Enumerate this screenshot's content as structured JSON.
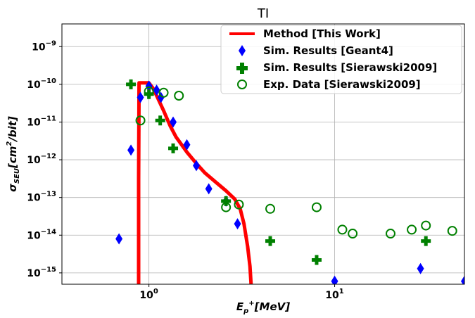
{
  "chart_data": {
    "type": "scatter",
    "title": "TI",
    "xlabel": "E_{p+} [MeV]",
    "xlabel_parts": {
      "main": "E",
      "sub": "p",
      "sup": "+",
      "rest": "[MeV]"
    },
    "ylabel": "σ_SEU [cm²/bit]",
    "ylabel_parts": {
      "main": "σ",
      "sub": "SEU",
      "rest1": "[cm",
      "sup": "2",
      "rest2": "/bit]"
    },
    "x_scale": "log",
    "y_scale": "log",
    "xlim": [
      0.34,
      50
    ],
    "ylim": [
      5e-16,
      4e-09
    ],
    "grid": true,
    "legend_position": "top-right",
    "x_ticks": [
      {
        "value": 1,
        "base": "10",
        "exp": "0"
      },
      {
        "value": 10,
        "base": "10",
        "exp": "1"
      }
    ],
    "y_ticks": [
      {
        "value": 1e-09,
        "base": "10",
        "exp": "−9"
      },
      {
        "value": 1e-10,
        "base": "10",
        "exp": "−10"
      },
      {
        "value": 1e-11,
        "base": "10",
        "exp": "−11"
      },
      {
        "value": 1e-12,
        "base": "10",
        "exp": "−12"
      },
      {
        "value": 1e-13,
        "base": "10",
        "exp": "−13"
      },
      {
        "value": 1e-14,
        "base": "10",
        "exp": "−14"
      },
      {
        "value": 1e-15,
        "base": "10",
        "exp": "−15"
      }
    ],
    "series": [
      {
        "name": "Method [This Work]",
        "kind": "line",
        "color": "#ff0000",
        "points": [
          [
            0.88,
            5e-16
          ],
          [
            0.88,
            3e-13
          ],
          [
            0.885,
            1.1e-10
          ],
          [
            1.0,
            1.1e-10
          ],
          [
            1.05,
            8e-11
          ],
          [
            1.1,
            5e-11
          ],
          [
            1.2,
            2e-11
          ],
          [
            1.3,
            8e-12
          ],
          [
            1.4,
            4e-12
          ],
          [
            1.6,
            1.6e-12
          ],
          [
            1.8,
            8e-13
          ],
          [
            2.0,
            4.5e-13
          ],
          [
            2.3,
            2.5e-13
          ],
          [
            2.6,
            1.5e-13
          ],
          [
            2.9,
            9e-14
          ],
          [
            3.1,
            5e-14
          ],
          [
            3.25,
            2e-14
          ],
          [
            3.4,
            5e-15
          ],
          [
            3.5,
            1.5e-15
          ],
          [
            3.55,
            5e-16
          ]
        ]
      },
      {
        "name": "Sim. Results [Geant4]",
        "kind": "diamond",
        "color": "#0000ff",
        "points": [
          [
            0.69,
            8e-15
          ],
          [
            0.8,
            1.8e-12
          ],
          [
            0.9,
            4.5e-11
          ],
          [
            1.0,
            9e-11
          ],
          [
            1.1,
            7e-11
          ],
          [
            1.16,
            4.5e-11
          ],
          [
            1.35,
            1e-11
          ],
          [
            1.6,
            2.5e-12
          ],
          [
            1.8,
            7e-13
          ],
          [
            2.1,
            1.7e-13
          ],
          [
            2.6,
            8e-14
          ],
          [
            3.0,
            2e-14
          ],
          [
            10,
            6e-16
          ],
          [
            29,
            1.3e-15
          ],
          [
            50,
            6e-16
          ]
        ]
      },
      {
        "name": "Sim. Results [Sierawski2009]",
        "kind": "plus",
        "color": "#008000",
        "points": [
          [
            0.8,
            1e-10
          ],
          [
            1.0,
            5.5e-11
          ],
          [
            1.15,
            1.1e-11
          ],
          [
            1.35,
            2e-12
          ],
          [
            2.6,
            8e-14
          ],
          [
            4.5,
            7e-15
          ],
          [
            8.0,
            2.2e-15
          ],
          [
            31,
            7e-15
          ]
        ]
      },
      {
        "name": "Exp. Data [Sierawski2009]",
        "kind": "circle",
        "color": "#008000",
        "points": [
          [
            0.9,
            1.1e-11
          ],
          [
            1.0,
            6.5e-11
          ],
          [
            1.2,
            6e-11
          ],
          [
            1.45,
            5e-11
          ],
          [
            2.6,
            5.5e-14
          ],
          [
            3.05,
            6.5e-14
          ],
          [
            4.5,
            5e-14
          ],
          [
            8.0,
            5.5e-14
          ],
          [
            11,
            1.4e-14
          ],
          [
            12.5,
            1.1e-14
          ],
          [
            20,
            1.1e-14
          ],
          [
            26,
            1.4e-14
          ],
          [
            31,
            1.8e-14
          ],
          [
            43,
            1.3e-14
          ]
        ]
      }
    ]
  }
}
